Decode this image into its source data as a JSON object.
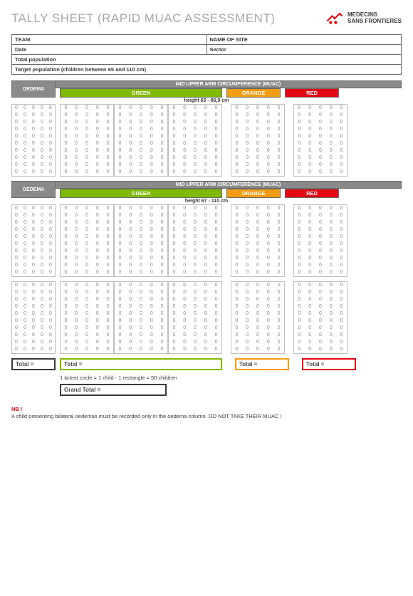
{
  "title": "TALLY SHEET (RAPID MUAC ASSESSMENT)",
  "logo": {
    "line1": "MEDECINS",
    "line2": "SANS FRONTIERES"
  },
  "site_table": {
    "team": "TEAM",
    "name_of_site": "NAME OF SITE",
    "date": "Date",
    "sector": "Sector",
    "total_pop": "Total population",
    "target_pop": "Target population (children between 65 and 110 cm)"
  },
  "colors": {
    "green": "#7fba00",
    "orange": "#f39c12",
    "red": "#e30613",
    "header_grey": "#8a8a8a",
    "border_grey": "#bfbfbf",
    "dark": "#3a3a3a"
  },
  "muac": {
    "header": "MID UPPER ARM CIRCUMFERENCE (MUAC)",
    "oedema": "OEDEMA",
    "labels": {
      "green": "GREEN",
      "orange": "ORANGE",
      "red": "RED"
    },
    "sections": [
      {
        "height_label": "height 65 - 86,9 cm",
        "rows": 10
      },
      {
        "height_label": "height 87 - 110 cm",
        "rows": 10
      },
      {
        "height_label": "",
        "rows": 10
      }
    ],
    "tally_mark": "0",
    "cols": {
      "oedema": 5,
      "green_sub": 5,
      "green_groups": 3,
      "orange": 5,
      "red": 5
    }
  },
  "totals": {
    "label": "Total =",
    "grand": "Grand Total ="
  },
  "legend": "1 ticked circle = 1 child     -     1 rectangle = 50 children",
  "footnote": {
    "heading": "NB !",
    "text": "A child presenting bilateral oedemas must be recorded only in the oedema column. DO NOT TAKE THEIR MUAC !"
  }
}
